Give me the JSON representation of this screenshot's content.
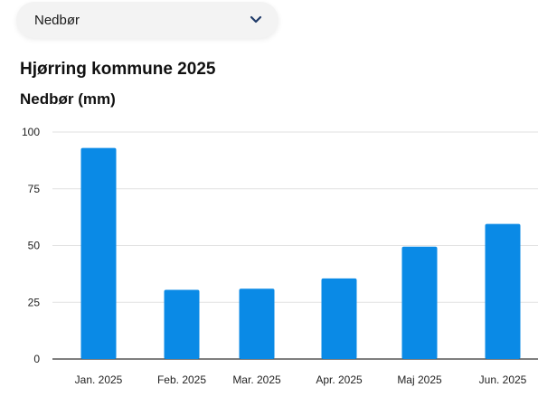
{
  "dropdown": {
    "selected": "Nedbør",
    "icon": "chevron-down-icon"
  },
  "colors": {
    "bar": "#0a8ae6",
    "chevron": "#1f3a68",
    "grid": "#e2e2e2",
    "axis": "#333333"
  },
  "chart_data": {
    "type": "bar",
    "title": "Hjørring kommune 2025",
    "subtitle": "",
    "ylabel": "Nedbør (mm)",
    "xlabel": "",
    "categories": [
      "Jan. 2025",
      "Feb. 2025",
      "Mar. 2025",
      "Apr. 2025",
      "Maj 2025",
      "Jun. 2025"
    ],
    "values": [
      93,
      30.5,
      31,
      35.5,
      49.5,
      59.5
    ],
    "ylim": [
      0,
      100
    ],
    "yticks": [
      0,
      25,
      50,
      75,
      100
    ],
    "grid": true,
    "legend": "none"
  }
}
